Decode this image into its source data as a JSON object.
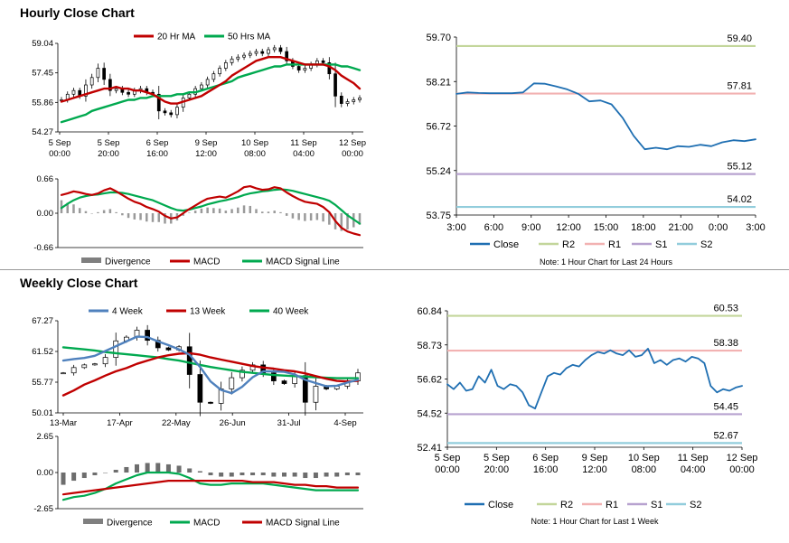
{
  "sections": {
    "hourly_title": "Hourly Close Chart",
    "weekly_title": "Weekly Close Chart"
  },
  "colors": {
    "ma_red": "#c00000",
    "ma_green": "#00a94f",
    "four_week_blue": "#4f81bd",
    "close_blue": "#1f6fb2",
    "r2": "#c3d69b",
    "r1": "#f2b2b2",
    "s1": "#b7a2cf",
    "s2": "#92cddc",
    "divergence": "#7f7f7f"
  },
  "chart_data": [
    {
      "id": "hourly_price",
      "type": "candlestick",
      "legend": [
        "20 Hr MA",
        "50 Hrs MA"
      ],
      "ylim": [
        54.27,
        59.04
      ],
      "yticks": [
        "59.04",
        "57.45",
        "55.86",
        "54.27"
      ],
      "xticks": [
        [
          "5 Sep",
          "00:00"
        ],
        [
          "5 Sep",
          "20:00"
        ],
        [
          "6 Sep",
          "16:00"
        ],
        [
          "9 Sep",
          "12:00"
        ],
        [
          "10 Sep",
          "08:00"
        ],
        [
          "11 Sep",
          "04:00"
        ],
        [
          "12 Sep",
          "00:00"
        ]
      ],
      "close": [
        56.0,
        56.3,
        56.5,
        56.2,
        56.8,
        57.2,
        57.7,
        57.1,
        56.5,
        56.6,
        56.4,
        56.3,
        56.5,
        56.6,
        56.4,
        56.3,
        55.4,
        55.3,
        55.2,
        55.6,
        56.1,
        56.3,
        56.6,
        56.8,
        57.1,
        57.4,
        57.7,
        58.0,
        58.2,
        58.3,
        58.4,
        58.5,
        58.6,
        58.5,
        58.7,
        58.8,
        58.6,
        58.1,
        57.8,
        57.6,
        57.7,
        57.9,
        58.1,
        58.0,
        57.4,
        56.2,
        55.8,
        55.9,
        56.0,
        56.1
      ],
      "ma20": [
        55.9,
        56.0,
        56.1,
        56.2,
        56.3,
        56.4,
        56.5,
        56.6,
        56.6,
        56.7,
        56.6,
        56.6,
        56.5,
        56.5,
        56.4,
        56.3,
        56.1,
        55.9,
        55.8,
        55.8,
        55.9,
        56.0,
        56.1,
        56.2,
        56.4,
        56.6,
        56.8,
        57.0,
        57.3,
        57.5,
        57.7,
        57.9,
        58.1,
        58.2,
        58.3,
        58.3,
        58.3,
        58.2,
        58.1,
        58.0,
        57.9,
        57.9,
        57.9,
        57.9,
        57.8,
        57.6,
        57.3,
        57.1,
        56.9,
        56.6
      ],
      "ma50": [
        54.8,
        54.9,
        55.0,
        55.1,
        55.2,
        55.4,
        55.5,
        55.6,
        55.7,
        55.8,
        55.9,
        56.0,
        56.0,
        56.1,
        56.1,
        56.2,
        56.2,
        56.2,
        56.2,
        56.3,
        56.3,
        56.4,
        56.4,
        56.5,
        56.6,
        56.7,
        56.8,
        56.9,
        57.0,
        57.2,
        57.3,
        57.4,
        57.5,
        57.6,
        57.7,
        57.8,
        57.8,
        57.9,
        57.9,
        57.9,
        57.9,
        57.9,
        57.9,
        57.9,
        57.9,
        57.9,
        57.8,
        57.8,
        57.7,
        57.6
      ]
    },
    {
      "id": "hourly_macd",
      "type": "line+bar",
      "legend": [
        "Divergence",
        "MACD",
        "MACD Signal Line"
      ],
      "ylim": [
        -0.66,
        0.66
      ],
      "yticks": [
        "0.66",
        "0.00",
        "-0.66"
      ],
      "macd": [
        0.35,
        0.38,
        0.42,
        0.4,
        0.37,
        0.35,
        0.38,
        0.44,
        0.48,
        0.42,
        0.35,
        0.28,
        0.22,
        0.18,
        0.12,
        0.08,
        0.03,
        -0.05,
        -0.1,
        -0.08,
        0.0,
        0.08,
        0.15,
        0.22,
        0.28,
        0.3,
        0.32,
        0.3,
        0.36,
        0.42,
        0.5,
        0.52,
        0.48,
        0.45,
        0.46,
        0.5,
        0.48,
        0.4,
        0.33,
        0.27,
        0.22,
        0.2,
        0.18,
        0.12,
        0.02,
        -0.15,
        -0.28,
        -0.35,
        -0.39,
        -0.42
      ],
      "signal": [
        0.1,
        0.18,
        0.25,
        0.3,
        0.33,
        0.35,
        0.36,
        0.38,
        0.4,
        0.4,
        0.39,
        0.37,
        0.34,
        0.31,
        0.28,
        0.25,
        0.2,
        0.15,
        0.1,
        0.06,
        0.05,
        0.07,
        0.1,
        0.13,
        0.17,
        0.2,
        0.23,
        0.25,
        0.28,
        0.31,
        0.35,
        0.38,
        0.4,
        0.42,
        0.43,
        0.45,
        0.46,
        0.45,
        0.43,
        0.4,
        0.37,
        0.34,
        0.31,
        0.28,
        0.24,
        0.16,
        0.06,
        -0.04,
        -0.12,
        -0.2
      ],
      "divergence": [
        0.25,
        0.2,
        0.17,
        0.1,
        0.04,
        0.0,
        0.02,
        0.06,
        0.08,
        0.02,
        -0.04,
        -0.09,
        -0.12,
        -0.13,
        -0.16,
        -0.17,
        -0.17,
        -0.2,
        -0.2,
        -0.14,
        -0.05,
        0.01,
        0.05,
        0.09,
        0.11,
        0.1,
        0.09,
        0.05,
        0.08,
        0.11,
        0.15,
        0.14,
        0.08,
        0.03,
        0.03,
        0.05,
        0.02,
        -0.05,
        -0.1,
        -0.13,
        -0.15,
        -0.14,
        -0.13,
        -0.16,
        -0.22,
        -0.31,
        -0.34,
        -0.31,
        -0.27,
        -0.22
      ]
    },
    {
      "id": "hourly_pivot",
      "type": "line",
      "legend": [
        "Close",
        "R2",
        "R1",
        "S1",
        "S2"
      ],
      "ylim": [
        53.75,
        59.7
      ],
      "yticks": [
        "59.70",
        "58.21",
        "56.72",
        "55.24",
        "53.75"
      ],
      "xticks": [
        "3:00",
        "6:00",
        "9:00",
        "12:00",
        "15:00",
        "18:00",
        "21:00",
        "0:00",
        "3:00"
      ],
      "levels": {
        "R2": 59.4,
        "R1": 57.81,
        "S1": 55.12,
        "S2": 54.02
      },
      "level_labels": {
        "R2": "59.40",
        "R1": "57.81",
        "S1": "55.12",
        "S2": "54.02"
      },
      "close": [
        57.8,
        57.85,
        57.83,
        57.82,
        57.82,
        57.82,
        57.85,
        58.15,
        58.14,
        58.05,
        57.95,
        57.8,
        57.55,
        57.58,
        57.45,
        57.0,
        56.4,
        55.95,
        56.0,
        55.95,
        56.05,
        56.03,
        56.1,
        56.05,
        56.18,
        56.25,
        56.22,
        56.28
      ],
      "note": "Note: 1 Hour Chart for Last 24 Hours"
    },
    {
      "id": "weekly_price",
      "type": "candlestick",
      "legend": [
        "4 Week",
        "13 Week",
        "40 Week"
      ],
      "ylim": [
        50.01,
        67.27
      ],
      "yticks": [
        "67.27",
        "61.52",
        "55.77",
        "50.01"
      ],
      "xticks": [
        "13-Mar",
        "17-Apr",
        "22-May",
        "26-Jun",
        "31-Jul",
        "4-Sep"
      ],
      "close": [
        57.5,
        58.5,
        59.0,
        59.2,
        60.4,
        63.5,
        64.2,
        65.5,
        63.6,
        62.2,
        61.8,
        62.4,
        57.2,
        52.0,
        51.8,
        54.5,
        56.6,
        58.0,
        59.0,
        57.5,
        56.0,
        55.5,
        57.0,
        52.0,
        55.0,
        54.5,
        55.0,
        56.0,
        57.5
      ],
      "ma4": [
        59.8,
        60.1,
        60.3,
        60.7,
        61.6,
        62.5,
        63.4,
        64.3,
        64.2,
        63.4,
        62.7,
        61.9,
        60.9,
        58.6,
        55.9,
        54.3,
        53.7,
        54.9,
        56.7,
        57.8,
        57.8,
        57.7,
        57.2,
        56.2,
        55.6,
        55.0,
        55.1,
        55.7,
        56.2
      ],
      "ma13": [
        53.3,
        54.2,
        55.3,
        56.1,
        57.0,
        57.8,
        58.4,
        59.2,
        59.8,
        60.4,
        60.8,
        61.1,
        61.2,
        60.9,
        60.4,
        60.0,
        59.6,
        59.2,
        58.8,
        58.5,
        58.3,
        58.0,
        57.8,
        57.4,
        56.9,
        56.4,
        56.0,
        55.9,
        56.0
      ],
      "ma40": [
        62.3,
        62.1,
        61.9,
        61.7,
        61.4,
        61.2,
        61.0,
        60.8,
        60.6,
        60.4,
        60.1,
        59.8,
        59.4,
        59.0,
        58.6,
        58.3,
        58.0,
        57.7,
        57.5,
        57.3,
        57.1,
        57.0,
        56.9,
        56.8,
        56.7,
        56.6,
        56.5,
        56.5,
        56.5
      ]
    },
    {
      "id": "weekly_macd",
      "type": "line+bar",
      "legend": [
        "Divergence",
        "MACD",
        "MACD Signal Line"
      ],
      "ylim": [
        -2.65,
        2.65
      ],
      "yticks": [
        "2.65",
        "0.00",
        "-2.65"
      ],
      "macd": [
        -2.0,
        -1.8,
        -1.7,
        -1.5,
        -1.2,
        -0.8,
        -0.5,
        -0.2,
        0.0,
        0.0,
        0.0,
        -0.1,
        -0.4,
        -0.8,
        -0.9,
        -0.9,
        -0.8,
        -0.8,
        -0.8,
        -0.8,
        -0.9,
        -1.0,
        -1.1,
        -1.2,
        -1.3,
        -1.3,
        -1.3,
        -1.3,
        -1.3
      ],
      "signal": [
        -1.6,
        -1.5,
        -1.4,
        -1.3,
        -1.2,
        -1.1,
        -1.0,
        -0.9,
        -0.8,
        -0.7,
        -0.6,
        -0.6,
        -0.6,
        -0.6,
        -0.6,
        -0.6,
        -0.6,
        -0.6,
        -0.7,
        -0.7,
        -0.7,
        -0.8,
        -0.9,
        -0.9,
        -1.0,
        -1.0,
        -1.1,
        -1.1,
        -1.1
      ],
      "divergence": [
        -0.9,
        -0.6,
        -0.4,
        -0.2,
        0.0,
        0.2,
        0.4,
        0.6,
        0.7,
        0.7,
        0.6,
        0.5,
        0.3,
        0.1,
        -0.2,
        -0.3,
        -0.3,
        -0.2,
        -0.2,
        -0.2,
        -0.3,
        -0.3,
        -0.3,
        -0.4,
        -0.4,
        -0.3,
        -0.3,
        -0.2,
        -0.2
      ]
    },
    {
      "id": "weekly_pivot",
      "type": "line",
      "legend": [
        "Close",
        "R2",
        "R1",
        "S1",
        "S2"
      ],
      "ylim": [
        52.41,
        60.84
      ],
      "yticks": [
        "60.84",
        "58.73",
        "56.62",
        "54.52",
        "52.41"
      ],
      "xticks": [
        [
          "5 Sep",
          "00:00"
        ],
        [
          "5 Sep",
          "20:00"
        ],
        [
          "6 Sep",
          "16:00"
        ],
        [
          "9 Sep",
          "12:00"
        ],
        [
          "10 Sep",
          "08:00"
        ],
        [
          "11 Sep",
          "04:00"
        ],
        [
          "12 Sep",
          "00:00"
        ]
      ],
      "levels": {
        "R2": 60.53,
        "R1": 58.38,
        "S1": 54.45,
        "S2": 52.67
      },
      "level_labels": {
        "R2": "60.53",
        "R1": "58.38",
        "S1": "54.45",
        "S2": "52.67"
      },
      "close": [
        56.3,
        56.0,
        56.4,
        55.9,
        56.0,
        56.8,
        56.4,
        57.2,
        56.2,
        56.0,
        56.3,
        56.2,
        55.8,
        55.0,
        54.8,
        55.8,
        56.8,
        57.0,
        56.9,
        57.3,
        57.5,
        57.4,
        57.8,
        58.1,
        58.3,
        58.2,
        58.4,
        58.2,
        58.1,
        58.4,
        58.0,
        58.1,
        58.5,
        57.6,
        57.8,
        57.5,
        57.8,
        57.9,
        57.7,
        58.0,
        57.9,
        57.6,
        56.2,
        55.8,
        56.0,
        55.9,
        56.1,
        56.2
      ],
      "note": "Note: 1 Hour Chart for Last 1 Week"
    }
  ]
}
